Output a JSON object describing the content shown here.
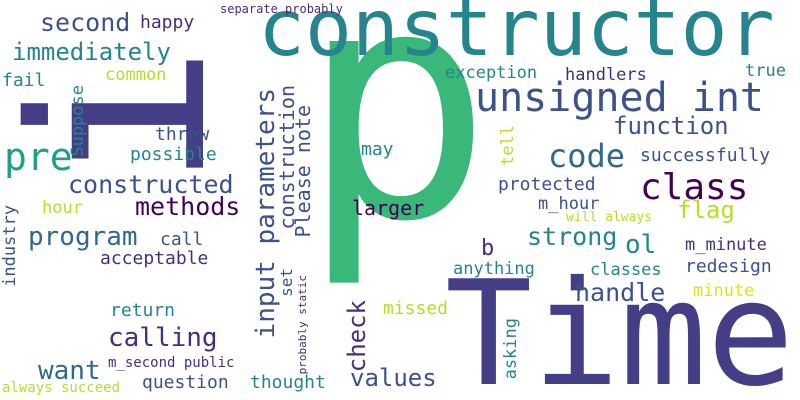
{
  "palette": {
    "navy": "#433e85",
    "indigo": "#472d7b",
    "steel": "#3b528b",
    "blue": "#31688e",
    "teal": "#25848e",
    "cyan": "#1f9e89",
    "green": "#35b779",
    "lime": "#6ece58",
    "yellowgreen": "#b5de2b",
    "yellow": "#dde318",
    "purple": "#440154"
  },
  "words": [
    {
      "id": "w-p",
      "text": "p",
      "color": "#3ab87a"
    },
    {
      "id": "w-time",
      "text": "Time",
      "color": "#433e85"
    },
    {
      "id": "w-constructor",
      "text": "constructor",
      "color": "#25848e"
    },
    {
      "id": "w-i",
      "text": "i",
      "color": "#433e85"
    },
    {
      "id": "w-unsigned-int",
      "text": "unsigned int",
      "color": "#3b528b"
    },
    {
      "id": "w-class",
      "text": "class",
      "color": "#440154"
    },
    {
      "id": "w-code",
      "text": "code",
      "color": "#31688e"
    },
    {
      "id": "w-pre",
      "text": "pre",
      "color": "#1f9e89"
    },
    {
      "id": "w-input-parameters",
      "text": "input parameters",
      "color": "#3b528b"
    },
    {
      "id": "w-constructed",
      "text": "constructed",
      "color": "#3b528b"
    },
    {
      "id": "w-program",
      "text": "program",
      "color": "#31688e"
    },
    {
      "id": "w-methods",
      "text": "methods",
      "color": "#440154"
    },
    {
      "id": "w-calling",
      "text": "calling",
      "color": "#472d7b"
    },
    {
      "id": "w-immediately",
      "text": "immediately",
      "color": "#25848e"
    },
    {
      "id": "w-second",
      "text": "second",
      "color": "#3b528b"
    },
    {
      "id": "w-construction",
      "text": "construction",
      "color": "#3b528b"
    },
    {
      "id": "w-please-note",
      "text": "Please note",
      "color": "#3b528b"
    },
    {
      "id": "w-check",
      "text": "check",
      "color": "#472d7b"
    },
    {
      "id": "w-values",
      "text": "values",
      "color": "#3b528b"
    },
    {
      "id": "w-handle",
      "text": "handle",
      "color": "#3b528b"
    },
    {
      "id": "w-strong",
      "text": "strong",
      "color": "#25848e"
    },
    {
      "id": "w-function",
      "text": "function",
      "color": "#3b528b"
    },
    {
      "id": "w-want",
      "text": "want",
      "color": "#31688e"
    },
    {
      "id": "w-flag",
      "text": "flag",
      "color": "#b5de2b"
    },
    {
      "id": "w-larger",
      "text": "larger",
      "color": "#440154"
    },
    {
      "id": "w-ol",
      "text": "ol",
      "color": "#25848e"
    },
    {
      "id": "w-b",
      "text": "b",
      "color": "#472d7b"
    },
    {
      "id": "w-happy",
      "text": "happy",
      "color": "#472d7b"
    },
    {
      "id": "w-exception",
      "text": "exception",
      "color": "#25848e"
    },
    {
      "id": "w-handlers",
      "text": "handlers",
      "color": "#472d7b"
    },
    {
      "id": "w-true",
      "text": "true",
      "color": "#25848e"
    },
    {
      "id": "w-successfully",
      "text": "successfully",
      "color": "#3b528b"
    },
    {
      "id": "w-protected",
      "text": "protected",
      "color": "#3b528b"
    },
    {
      "id": "w-m-hour",
      "text": "m_hour",
      "color": "#3b528b"
    },
    {
      "id": "w-m-minute",
      "text": "m_minute",
      "color": "#472d7b"
    },
    {
      "id": "w-redesign",
      "text": "redesign",
      "color": "#3b528b"
    },
    {
      "id": "w-classes",
      "text": "classes",
      "color": "#25848e"
    },
    {
      "id": "w-minute",
      "text": "minute",
      "color": "#dde318"
    },
    {
      "id": "w-anything",
      "text": "anything",
      "color": "#25848e"
    },
    {
      "id": "w-missed",
      "text": "missed",
      "color": "#b5de2b"
    },
    {
      "id": "w-asking",
      "text": "asking",
      "color": "#25848e"
    },
    {
      "id": "w-thought",
      "text": "thought",
      "color": "#25848e"
    },
    {
      "id": "w-question",
      "text": "question",
      "color": "#3b528b"
    },
    {
      "id": "w-return",
      "text": "return",
      "color": "#25848e"
    },
    {
      "id": "w-acceptable",
      "text": "acceptable",
      "color": "#472d7b"
    },
    {
      "id": "w-call",
      "text": "call",
      "color": "#3b528b"
    },
    {
      "id": "w-hour",
      "text": "hour",
      "color": "#b5de2b"
    },
    {
      "id": "w-throw",
      "text": "throw",
      "color": "#3b528b"
    },
    {
      "id": "w-possible",
      "text": "possible",
      "color": "#25848e"
    },
    {
      "id": "w-suppose",
      "text": "Suppose",
      "color": "#25848e"
    },
    {
      "id": "w-common",
      "text": "common",
      "color": "#b5de2b"
    },
    {
      "id": "w-fail",
      "text": "fail",
      "color": "#25848e"
    },
    {
      "id": "w-industry",
      "text": "industry",
      "color": "#3b528b"
    },
    {
      "id": "w-m-second-public",
      "text": "m_second public",
      "color": "#472d7b"
    },
    {
      "id": "w-always-succeed",
      "text": "always succeed",
      "color": "#b5de2b"
    },
    {
      "id": "w-probably-static",
      "text": "probably static",
      "color": "#472d7b"
    },
    {
      "id": "w-separate-probably",
      "text": "separate probably",
      "color": "#472d7b"
    },
    {
      "id": "w-may",
      "text": "may",
      "color": "#25848e"
    },
    {
      "id": "w-tell",
      "text": "tell",
      "color": "#b5de2b"
    },
    {
      "id": "w-will-always",
      "text": "will always",
      "color": "#b5de2b"
    },
    {
      "id": "w-set",
      "text": "set",
      "color": "#3b528b"
    }
  ]
}
